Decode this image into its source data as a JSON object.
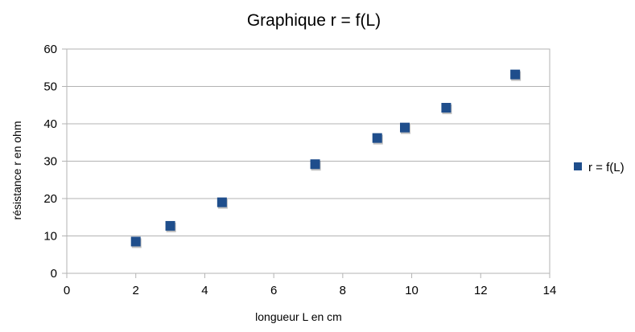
{
  "chart_data": {
    "type": "scatter",
    "title": "Graphique r = f(L)",
    "xlabel": "longueur L en cm",
    "ylabel": "résistance r en ohm",
    "xlim": [
      0,
      14
    ],
    "ylim": [
      0,
      60
    ],
    "xticks": [
      "0",
      "2",
      "4",
      "6",
      "8",
      "10",
      "12",
      "14"
    ],
    "yticks": [
      "0",
      "10",
      "20",
      "30",
      "40",
      "50",
      "60"
    ],
    "grid": "horizontal",
    "legend_position": "right",
    "series": [
      {
        "name": "r = f(L)",
        "color": "#1f4e8c",
        "marker": "square",
        "x": [
          2,
          3,
          4.5,
          7.2,
          9,
          9.8,
          11,
          13
        ],
        "y": [
          8.5,
          12.7,
          19,
          29.2,
          36.2,
          39,
          44.3,
          53.2
        ]
      }
    ]
  }
}
